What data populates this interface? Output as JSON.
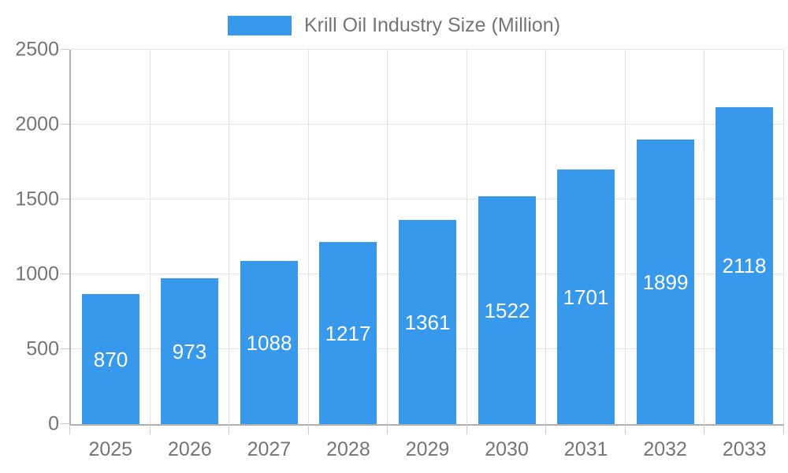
{
  "chart_data": {
    "type": "bar",
    "title": "Krill Oil Industry Size (Million)",
    "categories": [
      "2025",
      "2026",
      "2027",
      "2028",
      "2029",
      "2030",
      "2031",
      "2032",
      "2033"
    ],
    "series": [
      {
        "name": "Krill Oil Industry Size (Million)",
        "values": [
          870,
          973,
          1088,
          1217,
          1361,
          1522,
          1701,
          1899,
          2118
        ]
      }
    ],
    "xlabel": "",
    "ylabel": "",
    "ylim": [
      0,
      2500
    ],
    "y_ticks": [
      0,
      500,
      1000,
      1500,
      2000,
      2500
    ],
    "grid": true,
    "legend_position": "top",
    "bar_labels_visible": true,
    "colors": {
      "bar": "#3899ec",
      "bar_label": "#ffffff",
      "axis_text": "#757575",
      "axis_line": "#b0b0b0",
      "gridline": "#e3e3e3",
      "background": "#ffffff"
    }
  },
  "legend": {
    "label": "Krill Oil Industry Size (Million)"
  }
}
